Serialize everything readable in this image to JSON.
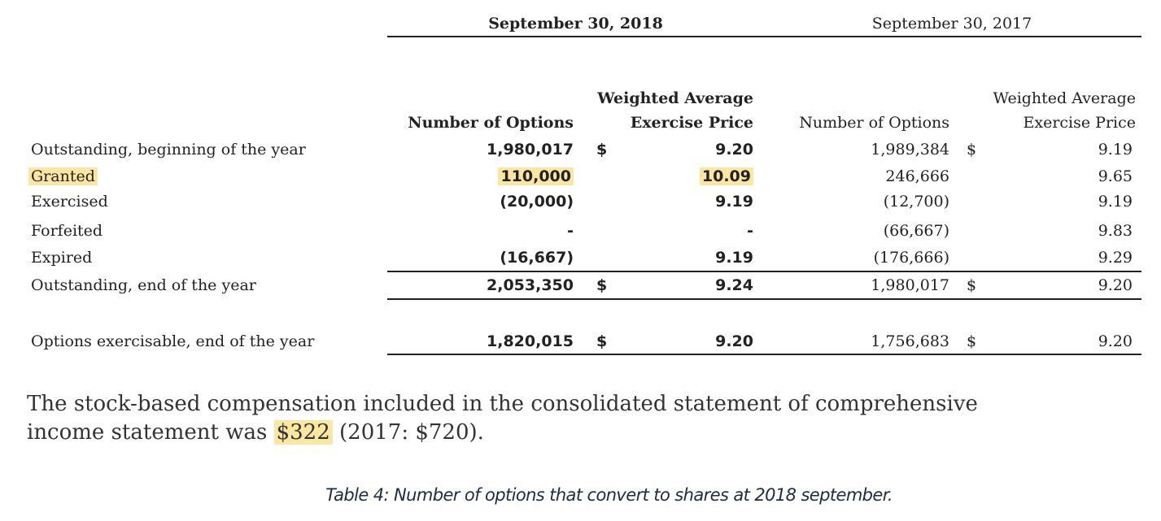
{
  "header": {
    "period_2018": "September 30, 2018",
    "period_2017": "September 30, 2017"
  },
  "table": {
    "columns": [
      [
        "Number of Options"
      ],
      [
        "Weighted Average",
        "Exercise Price"
      ],
      [
        "Number of Options"
      ],
      [
        "Weighted Average",
        "Exercise Price"
      ]
    ],
    "rows": [
      [
        "Outstanding, beginning of the year",
        "1,980,017",
        "$",
        "9.20",
        "1,989,384",
        "$",
        "9.19"
      ],
      [
        "Granted",
        "110,000",
        null,
        "10.09",
        "246,666",
        null,
        "9.65"
      ],
      [
        "Exercised",
        "(20,000)",
        null,
        "9.19",
        "(12,700)",
        null,
        "9.19"
      ],
      [
        "Forfeited",
        "-",
        null,
        "-",
        "(66,667)",
        null,
        "9.83"
      ],
      [
        "Expired",
        "(16,667)",
        null,
        "9.19",
        "(176,666)",
        null,
        "9.29"
      ],
      [
        "Outstanding, end of the year",
        "2,053,350",
        "$",
        "9.24",
        "1,980,017",
        "$",
        "9.20"
      ],
      [
        "Options exercisable, end of the year",
        "1,820,015",
        "$",
        "9.20",
        "1,756,683",
        "$",
        "9.20"
      ]
    ]
  },
  "paragraph": {
    "lines": [
      [
        "The stock-based compensation included in the consolidated statement of comprehensive"
      ],
      [
        "income statement was ",
        "$322",
        " (2017: $720)."
      ]
    ]
  },
  "caption": "Table 4: Number of options that convert to shares at 2018 september."
}
